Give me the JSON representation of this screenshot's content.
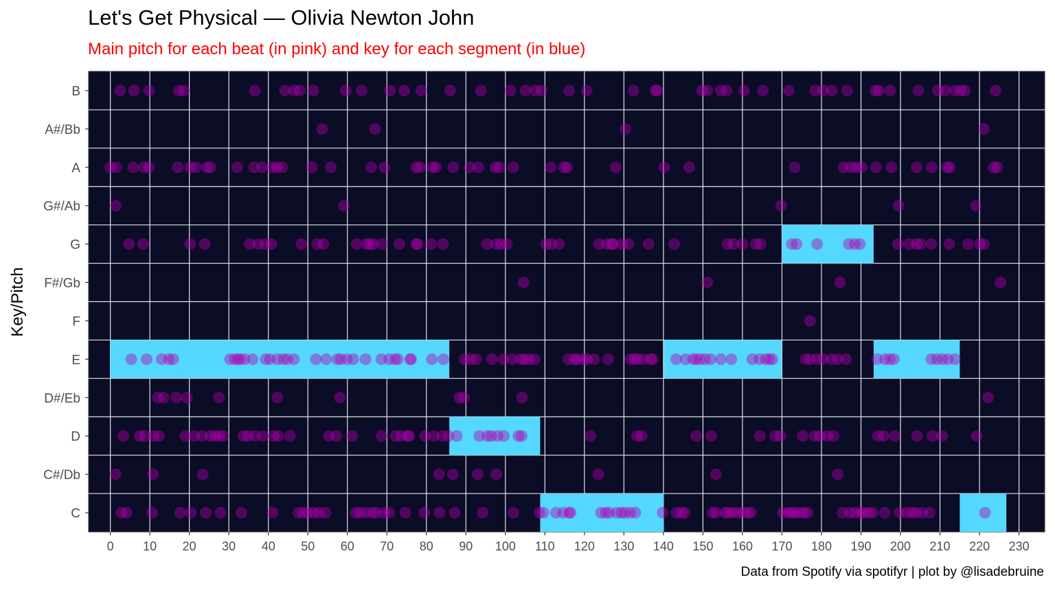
{
  "chart_data": {
    "type": "scatter",
    "title": "Let's Get Physical — Olivia Newton John",
    "subtitle": "Main pitch for each beat (in pink) and key for each segment (in blue)",
    "caption": "Data from Spotify via spotifyr | plot by @lisadebruine",
    "xlabel": "",
    "ylabel": "Key/Pitch",
    "xlim": [
      -5.5,
      236.5
    ],
    "x_ticks": [
      0,
      10,
      20,
      30,
      40,
      50,
      60,
      70,
      80,
      90,
      100,
      110,
      120,
      130,
      140,
      150,
      160,
      170,
      180,
      190,
      200,
      210,
      220,
      230
    ],
    "categories": [
      "C",
      "C#/Db",
      "D",
      "D#/Eb",
      "E",
      "F",
      "F#/Gb",
      "G",
      "G#/Ab",
      "A",
      "A#/Bb",
      "B"
    ],
    "grid": true,
    "colors": {
      "panel": "#0b0c25",
      "grid": "#e4e4ee",
      "beat": "#b000b0",
      "key": "#55d8ff",
      "subtitle": "#ff0000"
    },
    "key_segments": [
      {
        "key": "E",
        "start": 0,
        "end": 17.2
      },
      {
        "key": "E",
        "start": 17.2,
        "end": 85.8
      },
      {
        "key": "D",
        "start": 85.8,
        "end": 108.8
      },
      {
        "key": "C",
        "start": 108.8,
        "end": 140.1
      },
      {
        "key": "E",
        "start": 140.1,
        "end": 170.0
      },
      {
        "key": "G",
        "start": 170.0,
        "end": 193.2
      },
      {
        "key": "E",
        "start": 193.2,
        "end": 215.0
      },
      {
        "key": "C",
        "start": 215.0,
        "end": 226.8
      }
    ],
    "beats": [
      {
        "pitch": "B",
        "x": [
          2.5,
          6,
          9.8,
          17.3,
          18.6,
          36.6,
          44.2,
          46.5,
          47.9,
          51.4,
          59.6,
          63.6,
          70.8,
          74.4,
          78.7,
          86,
          93.8,
          101.3,
          105.1,
          107.6,
          109.2,
          116.1,
          120.6,
          132.4,
          137.9,
          138.5,
          149.7,
          151.1,
          154.5,
          156,
          160.4,
          165.2,
          171.7,
          178.4,
          180.4,
          182.6,
          186.5,
          193.6,
          194.5,
          197.4,
          204.5,
          209.5,
          211.3,
          213.7,
          215.2,
          216.3,
          224.1
        ]
      },
      {
        "pitch": "A#/Bb",
        "x": [
          53.6,
          67,
          130.4,
          221.1
        ]
      },
      {
        "pitch": "A",
        "x": [
          0,
          1.5,
          5.8,
          8.5,
          9.8,
          17.1,
          20.2,
          21.6,
          24.4,
          25.4,
          32.1,
          36.4,
          38.5,
          41,
          42.2,
          43.5,
          51,
          55.8,
          66,
          69.4,
          77.4,
          78.4,
          81.5,
          82.4,
          86.8,
          90.9,
          93.1,
          97.4,
          98.5,
          102,
          111.5,
          114.8,
          115.6,
          127.9,
          140.2,
          146.5,
          173.2,
          185.6,
          187.4,
          188.8,
          190.2,
          193.8,
          197.7,
          204.1,
          207.9,
          211.8,
          212.5,
          223.6,
          224.5
        ]
      },
      {
        "pitch": "G#/Ab",
        "x": [
          1.4,
          59.1,
          169.8,
          199.5,
          219.1
        ]
      },
      {
        "pitch": "G",
        "x": [
          4.7,
          8.3,
          20.2,
          23.9,
          35.3,
          37.4,
          39.2,
          40.8,
          48.4,
          52.4,
          53.9,
          62.4,
          64.9,
          65.7,
          66.5,
          68.8,
          73.2,
          77.4,
          77.8,
          81.2,
          84.2,
          95.3,
          97.6,
          98.9,
          100.4,
          110.3,
          111.6,
          113.6,
          123.7,
          125.7,
          126.9,
          127.2,
          129.5,
          131.1,
          136.2,
          142.7,
          156.2,
          157.7,
          160,
          163.4,
          164.6,
          172.5,
          173.7,
          178.9,
          186.9,
          188.4,
          189.7,
          199.4,
          202.2,
          204.1,
          205.1,
          207.8,
          212.4,
          217.1,
          220.1,
          221.1
        ]
      },
      {
        "pitch": "F#/Gb",
        "x": [
          104.6,
          151.1,
          184.7,
          225.3
        ]
      },
      {
        "pitch": "F",
        "x": [
          177.1
        ]
      },
      {
        "pitch": "E",
        "x": [
          5.3,
          9.2,
          13,
          14.8,
          15.9,
          30.3,
          31.5,
          32.3,
          32.9,
          34,
          36,
          39.3,
          40.4,
          42.3,
          43.8,
          44.8,
          46.5,
          52,
          54.6,
          57.4,
          58.3,
          59.9,
          61.5,
          64.6,
          68.6,
          70.6,
          72.1,
          72.8,
          75.9,
          76.1,
          81.4,
          84.3,
          89.6,
          91.1,
          92.6,
          96.6,
          99.5,
          101.7,
          103.9,
          104.8,
          106,
          107.4,
          115.9,
          117.5,
          118.2,
          119.7,
          120.6,
          122.4,
          126,
          131.7,
          132.7,
          133.5,
          134.9,
          136.7,
          137.3,
          143.2,
          145.6,
          147.5,
          148.3,
          149.3,
          150.5,
          151.9,
          154.5,
          157.2,
          162.5,
          164.3,
          165.9,
          166.8,
          167.6,
          175.9,
          177.1,
          178.9,
          180.4,
          182.5,
          184.1,
          186.2,
          194.1,
          196.1,
          197.3,
          198.3,
          207.8,
          209.2,
          210.6,
          212,
          213.8
        ]
      },
      {
        "pitch": "D#/Eb",
        "x": [
          12,
          13.5,
          16.7,
          19.4,
          27.5,
          42.3,
          58.1,
          88.3,
          89.5,
          104.2,
          222.2
        ]
      },
      {
        "pitch": "D",
        "x": [
          3.3,
          7.4,
          8.7,
          11,
          12.3,
          19,
          21.3,
          23.2,
          25.3,
          26.5,
          27.6,
          28.6,
          33.7,
          34.8,
          36.6,
          38.6,
          41.3,
          42.5,
          45.5,
          55.3,
          57.2,
          61.2,
          68.7,
          72.2,
          73.6,
          75.2,
          75.6,
          79.6,
          81.8,
          84,
          85.6,
          87.7,
          93.4,
          95.4,
          96.4,
          98,
          99.6,
          103.3,
          104.1,
          121.5,
          133.3,
          134.5,
          148.3,
          152.1,
          164.4,
          168.3,
          169.6,
          175.2,
          178.2,
          179.6,
          181.5,
          183.1,
          194.3,
          195.7,
          198.5,
          204.2,
          208.1,
          210.5,
          219.3
        ]
      },
      {
        "pitch": "C#/Db",
        "x": [
          1.3,
          10.8,
          23.4,
          83.2,
          86.7,
          93,
          97.7,
          123.5,
          153.3,
          184.1
        ]
      },
      {
        "pitch": "C",
        "x": [
          2.8,
          4.1,
          10.6,
          17.7,
          20.4,
          24.2,
          27.9,
          33.2,
          41.1,
          47.6,
          48.8,
          50,
          51.5,
          52.8,
          54.5,
          62.1,
          63.2,
          64.6,
          66.3,
          67.3,
          69.3,
          70.6,
          74.7,
          79.5,
          83.3,
          87.2,
          94.2,
          102,
          108.6,
          109.6,
          112.8,
          114.6,
          116.1,
          116.5,
          124.2,
          125.4,
          126.3,
          128.2,
          129.4,
          130.3,
          131.6,
          132.9,
          139.8,
          143.3,
          144.6,
          145.4,
          152.4,
          153.3,
          155.6,
          156.4,
          157.6,
          158.9,
          160.3,
          161.3,
          162.1,
          170.2,
          171.7,
          172.5,
          173.3,
          174.4,
          175.6,
          176.5,
          185.3,
          187.2,
          188.5,
          189.9,
          190.6,
          191.9,
          193,
          196,
          199.8,
          201.6,
          202.9,
          204,
          205.5,
          207.4,
          221.4
        ]
      }
    ]
  }
}
